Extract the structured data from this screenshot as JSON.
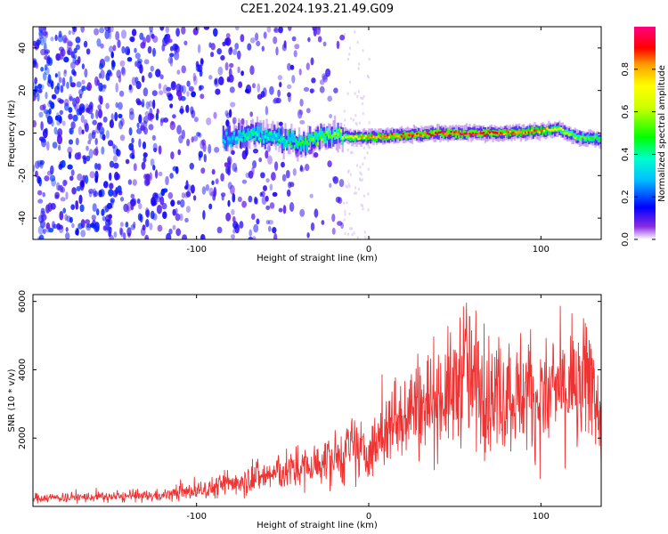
{
  "title": "C2E1.2024.193.21.49.G09",
  "chart_data": [
    {
      "type": "heatmap",
      "xlabel": "Height of straight line (km)",
      "ylabel": "Frequency (Hz)",
      "xlim": [
        -195,
        135
      ],
      "ylim": [
        -50,
        50
      ],
      "x_ticks": [
        -100,
        0,
        100
      ],
      "y_ticks": [
        -40,
        -20,
        0,
        20,
        40
      ],
      "colorbar": {
        "label": "Normalized spectral amplitude",
        "range": [
          0,
          1
        ],
        "ticks": [
          "0.0",
          "0.2",
          "0.4",
          "0.6",
          "0.8"
        ]
      },
      "ridge": {
        "x": [
          -85,
          -70,
          -55,
          -40,
          -30,
          -20,
          -10,
          0,
          20,
          40,
          60,
          80,
          100,
          110,
          120,
          135
        ],
        "frequency": [
          -3,
          0,
          -2,
          -5,
          -2,
          -1,
          -2,
          -2,
          -1,
          0,
          0,
          0,
          1,
          2,
          -2,
          -3
        ],
        "peak_amplitude": [
          0.3,
          0.45,
          0.4,
          0.5,
          0.55,
          0.6,
          0.75,
          0.85,
          0.9,
          0.92,
          0.95,
          0.9,
          0.85,
          0.7,
          0.6,
          0.5
        ]
      },
      "noise_region_x": [
        -195,
        -15
      ]
    },
    {
      "type": "line",
      "xlabel": "Height of straight line (km)",
      "ylabel": "SNR (10 * v/v)",
      "xlim": [
        -195,
        135
      ],
      "ylim": [
        0,
        6200
      ],
      "x_ticks": [
        -100,
        0,
        100
      ],
      "y_ticks": [
        2000,
        4000,
        6000
      ],
      "color": "#ee3333",
      "series": [
        {
          "x": [
            -195,
            -180,
            -160,
            -140,
            -120,
            -100,
            -90,
            -80,
            -70,
            -60,
            -50,
            -40,
            -30,
            -20,
            -10,
            0,
            10,
            20,
            30,
            40,
            50,
            55,
            60,
            70,
            80,
            90,
            100,
            110,
            120,
            130,
            135
          ],
          "values": [
            250,
            260,
            270,
            280,
            320,
            450,
            550,
            700,
            800,
            900,
            1000,
            1100,
            1200,
            1400,
            1600,
            1500,
            2200,
            2800,
            3000,
            3200,
            3400,
            4200,
            3500,
            3300,
            3200,
            3400,
            3000,
            3500,
            3200,
            3900,
            2100
          ]
        }
      ]
    }
  ]
}
